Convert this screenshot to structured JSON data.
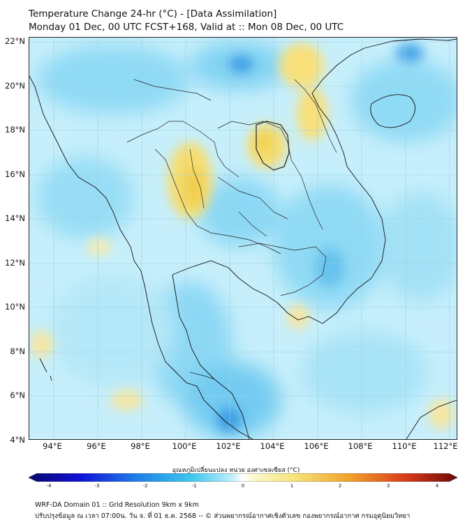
{
  "title": {
    "line1": "Temperature Change 24-hr (°C) - [Data Assimilation]",
    "line2": "Monday 01 Dec, 00 UTC FCST+168, Valid at :: Mon 08 Dec, 00 UTC"
  },
  "axes": {
    "lat_labels": [
      "22°N",
      "20°N",
      "18°N",
      "16°N",
      "14°N",
      "12°N",
      "10°N",
      "8°N",
      "6°N",
      "4°N"
    ],
    "lon_labels": [
      "94°E",
      "96°E",
      "98°E",
      "100°E",
      "102°E",
      "104°E",
      "106°E",
      "108°E",
      "110°E",
      "112°E"
    ]
  },
  "colorbar": {
    "title": "อุณหภูมิเปลี่ยนแปลง หน่วย องศาเซลเซียส (°C)",
    "ticks": [
      "-4",
      "-3",
      "-2",
      "-1",
      "0",
      "1",
      "2",
      "3",
      "4"
    ],
    "range": [
      -4,
      4
    ]
  },
  "footer": {
    "line1": "WRF-DA Domain 01 :: Grid Resolution 9km x 9km",
    "line2": "ปรับปรุงข้อมูล ณ เวลา 07:00น. วัน จ. ที่ 01 ธ.ค. 2568 -- © ส่วนพยากรณ์อากาศเชิงตัวเลข กองพยากรณ์อากาศ กรมอุตุนิยมวิทยา"
  },
  "colors": {
    "neutral": "#c8f0fb",
    "cool": "#7fd3f3",
    "warm": "#f7e27a",
    "cold_core": "#3aa0e3",
    "coast": "#111111"
  }
}
